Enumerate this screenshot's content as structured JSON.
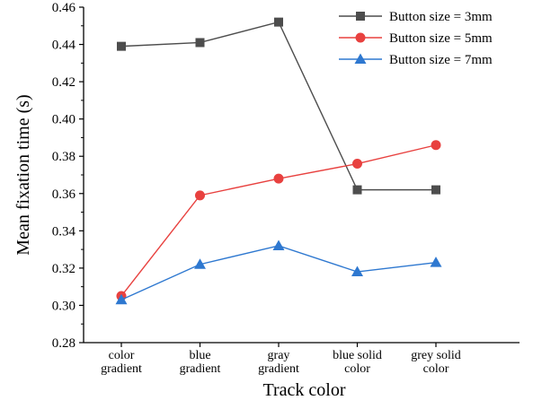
{
  "chart_data": {
    "type": "line",
    "categories": [
      [
        "color",
        "gradient"
      ],
      [
        "blue",
        "gradient"
      ],
      [
        "gray",
        "gradient"
      ],
      [
        "blue solid",
        "color"
      ],
      [
        "grey solid",
        "color"
      ]
    ],
    "xlabel": "Track color",
    "ylabel": "Mean fixation time (s)",
    "ylim": [
      0.28,
      0.46
    ],
    "yticks": [
      "0.28",
      "0.30",
      "0.32",
      "0.34",
      "0.36",
      "0.38",
      "0.40",
      "0.42",
      "0.44",
      "0.46"
    ],
    "grid": false,
    "legend_position": "top-right",
    "series": [
      {
        "name": "Button size = 3mm",
        "color": "#4d4d4d",
        "marker": "square",
        "values": [
          0.439,
          0.441,
          0.452,
          0.362,
          0.362
        ]
      },
      {
        "name": "Button size = 5mm",
        "color": "#e8413f",
        "marker": "circle",
        "values": [
          0.305,
          0.359,
          0.368,
          0.376,
          0.386
        ]
      },
      {
        "name": "Button size = 7mm",
        "color": "#2e78d0",
        "marker": "triangle",
        "values": [
          0.303,
          0.322,
          0.332,
          0.318,
          0.323
        ]
      }
    ]
  }
}
